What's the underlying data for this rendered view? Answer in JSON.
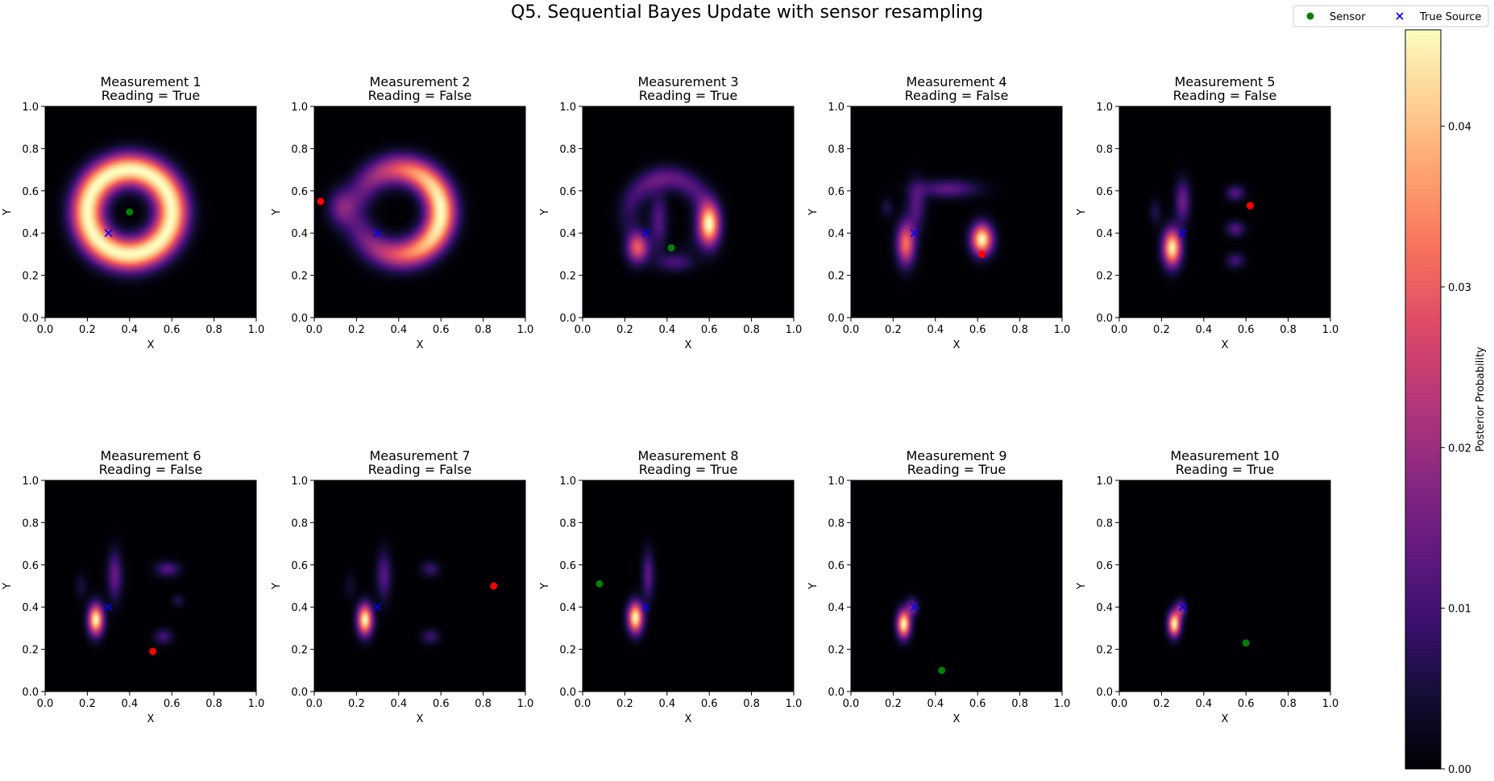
{
  "chart_data": {
    "type": "heatmap",
    "title": "Q5. Sequential Bayes Update with sensor resampling",
    "xlabel": "X",
    "ylabel": "Y",
    "xlim": [
      0,
      1
    ],
    "ylim": [
      0,
      1
    ],
    "ticks": [
      "0.0",
      "0.2",
      "0.4",
      "0.6",
      "0.8",
      "1.0"
    ],
    "legend": {
      "placement": "top-right",
      "entries": [
        {
          "label": "Sensor",
          "marker": "circle",
          "color": "#008000"
        },
        {
          "label": "True Source",
          "marker": "x",
          "color": "#0000ff"
        }
      ]
    },
    "colorbar": {
      "label": "Posterior Probability",
      "ticks": [
        "0.00",
        "0.01",
        "0.02",
        "0.03",
        "0.04"
      ],
      "tick_values": [
        0,
        0.01,
        0.02,
        0.03,
        0.04
      ],
      "range": [
        0,
        0.046
      ],
      "colormap": "magma"
    },
    "true_source": {
      "x": 0.3,
      "y": 0.4
    },
    "panels": [
      {
        "title": "Measurement 1",
        "subtitle": "Reading = True",
        "sensor": {
          "x": 0.4,
          "y": 0.5
        },
        "sensor_color": "#008000",
        "blobs": [
          {
            "type": "ring",
            "cx": 0.4,
            "cy": 0.5,
            "r": 0.2,
            "sigma": 0.055,
            "amp": 0.046
          }
        ]
      },
      {
        "title": "Measurement 2",
        "subtitle": "Reading = False",
        "sensor": {
          "x": 0.03,
          "y": 0.55
        },
        "sensor_color": "#ff0000",
        "blobs": [
          {
            "type": "arc",
            "cx": 0.4,
            "cy": 0.5,
            "r": 0.2,
            "sigma": 0.05,
            "amp": 0.046,
            "dir": 0.0,
            "spread": 1.7
          },
          {
            "type": "gauss",
            "cx": 0.13,
            "cy": 0.52,
            "sx": 0.045,
            "sy": 0.06,
            "rho": 0,
            "amp": 0.015
          }
        ]
      },
      {
        "title": "Measurement 3",
        "subtitle": "Reading = True",
        "sensor": {
          "x": 0.42,
          "y": 0.33
        },
        "sensor_color": "#008000",
        "blobs": [
          {
            "type": "arc",
            "cx": 0.4,
            "cy": 0.48,
            "r": 0.18,
            "sigma": 0.04,
            "amp": 0.014,
            "dir": 1.57,
            "spread": 1.3
          },
          {
            "type": "gauss",
            "cx": 0.6,
            "cy": 0.44,
            "sx": 0.035,
            "sy": 0.07,
            "rho": 0,
            "amp": 0.042
          },
          {
            "type": "gauss",
            "cx": 0.26,
            "cy": 0.33,
            "sx": 0.035,
            "sy": 0.05,
            "rho": 0,
            "amp": 0.028
          },
          {
            "type": "gauss",
            "cx": 0.36,
            "cy": 0.46,
            "sx": 0.03,
            "sy": 0.09,
            "rho": 0,
            "amp": 0.012
          },
          {
            "type": "gauss",
            "cx": 0.44,
            "cy": 0.26,
            "sx": 0.06,
            "sy": 0.03,
            "rho": 0,
            "amp": 0.01
          }
        ]
      },
      {
        "title": "Measurement 4",
        "subtitle": "Reading = False",
        "sensor": {
          "x": 0.62,
          "y": 0.3
        },
        "sensor_color": "#ff0000",
        "blobs": [
          {
            "type": "gauss",
            "cx": 0.26,
            "cy": 0.35,
            "sx": 0.03,
            "sy": 0.07,
            "rho": 0,
            "amp": 0.032
          },
          {
            "type": "gauss",
            "cx": 0.62,
            "cy": 0.37,
            "sx": 0.035,
            "sy": 0.05,
            "rho": 0,
            "amp": 0.046
          },
          {
            "type": "gauss",
            "cx": 0.46,
            "cy": 0.61,
            "sx": 0.1,
            "sy": 0.03,
            "rho": 0,
            "amp": 0.013
          },
          {
            "type": "gauss",
            "cx": 0.31,
            "cy": 0.53,
            "sx": 0.03,
            "sy": 0.08,
            "rho": 0,
            "amp": 0.012
          },
          {
            "type": "gauss",
            "cx": 0.17,
            "cy": 0.52,
            "sx": 0.02,
            "sy": 0.03,
            "rho": 0,
            "amp": 0.006
          }
        ]
      },
      {
        "title": "Measurement 5",
        "subtitle": "Reading = False",
        "sensor": {
          "x": 0.62,
          "y": 0.53
        },
        "sensor_color": "#ff0000",
        "blobs": [
          {
            "type": "gauss",
            "cx": 0.25,
            "cy": 0.33,
            "sx": 0.03,
            "sy": 0.06,
            "rho": 0,
            "amp": 0.045
          },
          {
            "type": "gauss",
            "cx": 0.3,
            "cy": 0.55,
            "sx": 0.025,
            "sy": 0.07,
            "rho": 0,
            "amp": 0.015
          },
          {
            "type": "gauss",
            "cx": 0.55,
            "cy": 0.59,
            "sx": 0.03,
            "sy": 0.025,
            "rho": 0,
            "amp": 0.012
          },
          {
            "type": "gauss",
            "cx": 0.55,
            "cy": 0.42,
            "sx": 0.03,
            "sy": 0.025,
            "rho": 0,
            "amp": 0.012
          },
          {
            "type": "gauss",
            "cx": 0.55,
            "cy": 0.27,
            "sx": 0.03,
            "sy": 0.025,
            "rho": 0,
            "amp": 0.01
          },
          {
            "type": "gauss",
            "cx": 0.17,
            "cy": 0.5,
            "sx": 0.02,
            "sy": 0.04,
            "rho": 0,
            "amp": 0.006
          }
        ]
      },
      {
        "title": "Measurement 6",
        "subtitle": "Reading = False",
        "sensor": {
          "x": 0.51,
          "y": 0.19
        },
        "sensor_color": "#ff0000",
        "blobs": [
          {
            "type": "gauss",
            "cx": 0.24,
            "cy": 0.34,
            "sx": 0.025,
            "sy": 0.05,
            "rho": 0,
            "amp": 0.046
          },
          {
            "type": "gauss",
            "cx": 0.33,
            "cy": 0.55,
            "sx": 0.025,
            "sy": 0.08,
            "rho": 0,
            "amp": 0.014
          },
          {
            "type": "gauss",
            "cx": 0.58,
            "cy": 0.58,
            "sx": 0.04,
            "sy": 0.025,
            "rho": 0,
            "amp": 0.012
          },
          {
            "type": "gauss",
            "cx": 0.56,
            "cy": 0.26,
            "sx": 0.03,
            "sy": 0.025,
            "rho": 0,
            "amp": 0.01
          },
          {
            "type": "gauss",
            "cx": 0.63,
            "cy": 0.43,
            "sx": 0.02,
            "sy": 0.02,
            "rho": 0,
            "amp": 0.006
          },
          {
            "type": "gauss",
            "cx": 0.17,
            "cy": 0.5,
            "sx": 0.02,
            "sy": 0.04,
            "rho": 0,
            "amp": 0.005
          }
        ]
      },
      {
        "title": "Measurement 7",
        "subtitle": "Reading = False",
        "sensor": {
          "x": 0.85,
          "y": 0.5
        },
        "sensor_color": "#ff0000",
        "blobs": [
          {
            "type": "gauss",
            "cx": 0.24,
            "cy": 0.34,
            "sx": 0.025,
            "sy": 0.05,
            "rho": 0,
            "amp": 0.046
          },
          {
            "type": "gauss",
            "cx": 0.33,
            "cy": 0.55,
            "sx": 0.025,
            "sy": 0.08,
            "rho": 0,
            "amp": 0.012
          },
          {
            "type": "gauss",
            "cx": 0.55,
            "cy": 0.58,
            "sx": 0.03,
            "sy": 0.025,
            "rho": 0,
            "amp": 0.009
          },
          {
            "type": "gauss",
            "cx": 0.55,
            "cy": 0.26,
            "sx": 0.03,
            "sy": 0.025,
            "rho": 0,
            "amp": 0.009
          },
          {
            "type": "gauss",
            "cx": 0.17,
            "cy": 0.5,
            "sx": 0.02,
            "sy": 0.04,
            "rho": 0,
            "amp": 0.004
          }
        ]
      },
      {
        "title": "Measurement 8",
        "subtitle": "Reading = True",
        "sensor": {
          "x": 0.08,
          "y": 0.51
        },
        "sensor_color": "#008000",
        "blobs": [
          {
            "type": "gauss",
            "cx": 0.25,
            "cy": 0.35,
            "sx": 0.025,
            "sy": 0.05,
            "rho": 0,
            "amp": 0.046
          },
          {
            "type": "gauss",
            "cx": 0.31,
            "cy": 0.55,
            "sx": 0.02,
            "sy": 0.08,
            "rho": 0,
            "amp": 0.013
          }
        ]
      },
      {
        "title": "Measurement 9",
        "subtitle": "Reading = True",
        "sensor": {
          "x": 0.43,
          "y": 0.1
        },
        "sensor_color": "#008000",
        "blobs": [
          {
            "type": "gauss",
            "cx": 0.25,
            "cy": 0.32,
            "sx": 0.022,
            "sy": 0.045,
            "rho": 0,
            "amp": 0.046
          },
          {
            "type": "gauss",
            "cx": 0.29,
            "cy": 0.4,
            "sx": 0.02,
            "sy": 0.03,
            "rho": 0,
            "amp": 0.015
          }
        ]
      },
      {
        "title": "Measurement 10",
        "subtitle": "Reading = True",
        "sensor": {
          "x": 0.6,
          "y": 0.23
        },
        "sensor_color": "#008000",
        "blobs": [
          {
            "type": "gauss",
            "cx": 0.26,
            "cy": 0.32,
            "sx": 0.02,
            "sy": 0.04,
            "rho": 0,
            "amp": 0.046
          },
          {
            "type": "gauss",
            "cx": 0.29,
            "cy": 0.39,
            "sx": 0.018,
            "sy": 0.03,
            "rho": 0,
            "amp": 0.018
          }
        ]
      }
    ]
  }
}
